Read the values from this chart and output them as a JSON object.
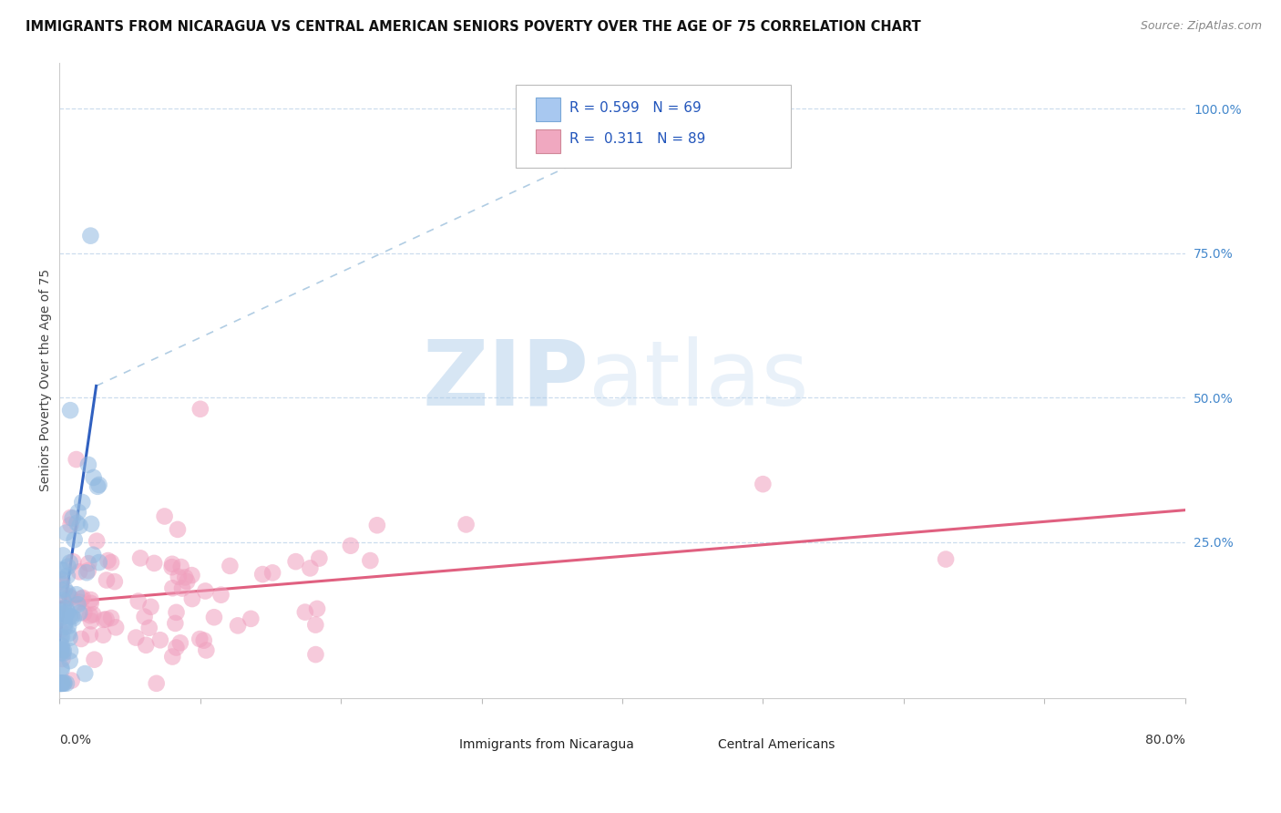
{
  "title": "IMMIGRANTS FROM NICARAGUA VS CENTRAL AMERICAN SENIORS POVERTY OVER THE AGE OF 75 CORRELATION CHART",
  "source": "Source: ZipAtlas.com",
  "ylabel": "Seniors Poverty Over the Age of 75",
  "watermark_left": "ZIP",
  "watermark_right": "atlas",
  "legend_r1": "R = 0.599   N = 69",
  "legend_r2": "R =  0.311   N = 89",
  "right_ytick_vals": [
    1.0,
    0.75,
    0.5,
    0.25
  ],
  "right_ytick_labels": [
    "100.0%",
    "75.0%",
    "50.0%",
    "25.0%"
  ],
  "nic_color": "#90b8e0",
  "ca_color": "#f0a0be",
  "nic_trend_color": "#3060c0",
  "nic_trend_dash_color": "#90b8d8",
  "ca_trend_color": "#e06080",
  "xlim": [
    0.0,
    0.8
  ],
  "ylim": [
    -0.02,
    1.08
  ],
  "background_color": "#ffffff",
  "grid_color": "#ccddee",
  "title_fontsize": 10.5,
  "source_fontsize": 9
}
